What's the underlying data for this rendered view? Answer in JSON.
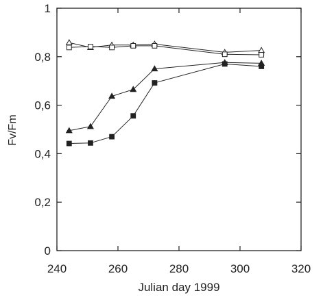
{
  "chart_data": {
    "type": "line",
    "xlabel": "Julian day 1999",
    "ylabel": "Fv/Fm",
    "xlim": [
      240,
      320
    ],
    "ylim": [
      0,
      1
    ],
    "x_ticks": [
      240,
      260,
      280,
      300,
      320
    ],
    "y_ticks": [
      0,
      0.2,
      0.4,
      0.6,
      0.8,
      1
    ],
    "x_tick_labels": [
      "240",
      "260",
      "280",
      "300",
      "320"
    ],
    "y_tick_labels": [
      "0",
      "0,2",
      "0,4",
      "0,6",
      "0,8",
      "1"
    ],
    "grid": false,
    "legend": "none",
    "series": [
      {
        "marker": "open-triangle",
        "x": [
          244,
          251,
          258,
          265,
          272,
          295,
          307
        ],
        "y": [
          0.858,
          0.838,
          0.848,
          0.848,
          0.852,
          0.818,
          0.826
        ]
      },
      {
        "marker": "open-square",
        "x": [
          244,
          251,
          258,
          265,
          272,
          295,
          307
        ],
        "y": [
          0.838,
          0.842,
          0.838,
          0.845,
          0.845,
          0.81,
          0.808
        ]
      },
      {
        "marker": "filled-triangle",
        "x": [
          244,
          251,
          258,
          265,
          272,
          295,
          307
        ],
        "y": [
          0.495,
          0.512,
          0.637,
          0.665,
          0.75,
          0.776,
          0.773
        ]
      },
      {
        "marker": "filled-square",
        "x": [
          244,
          251,
          258,
          265,
          272,
          295,
          307
        ],
        "y": [
          0.442,
          0.444,
          0.47,
          0.556,
          0.692,
          0.77,
          0.76
        ]
      }
    ]
  }
}
